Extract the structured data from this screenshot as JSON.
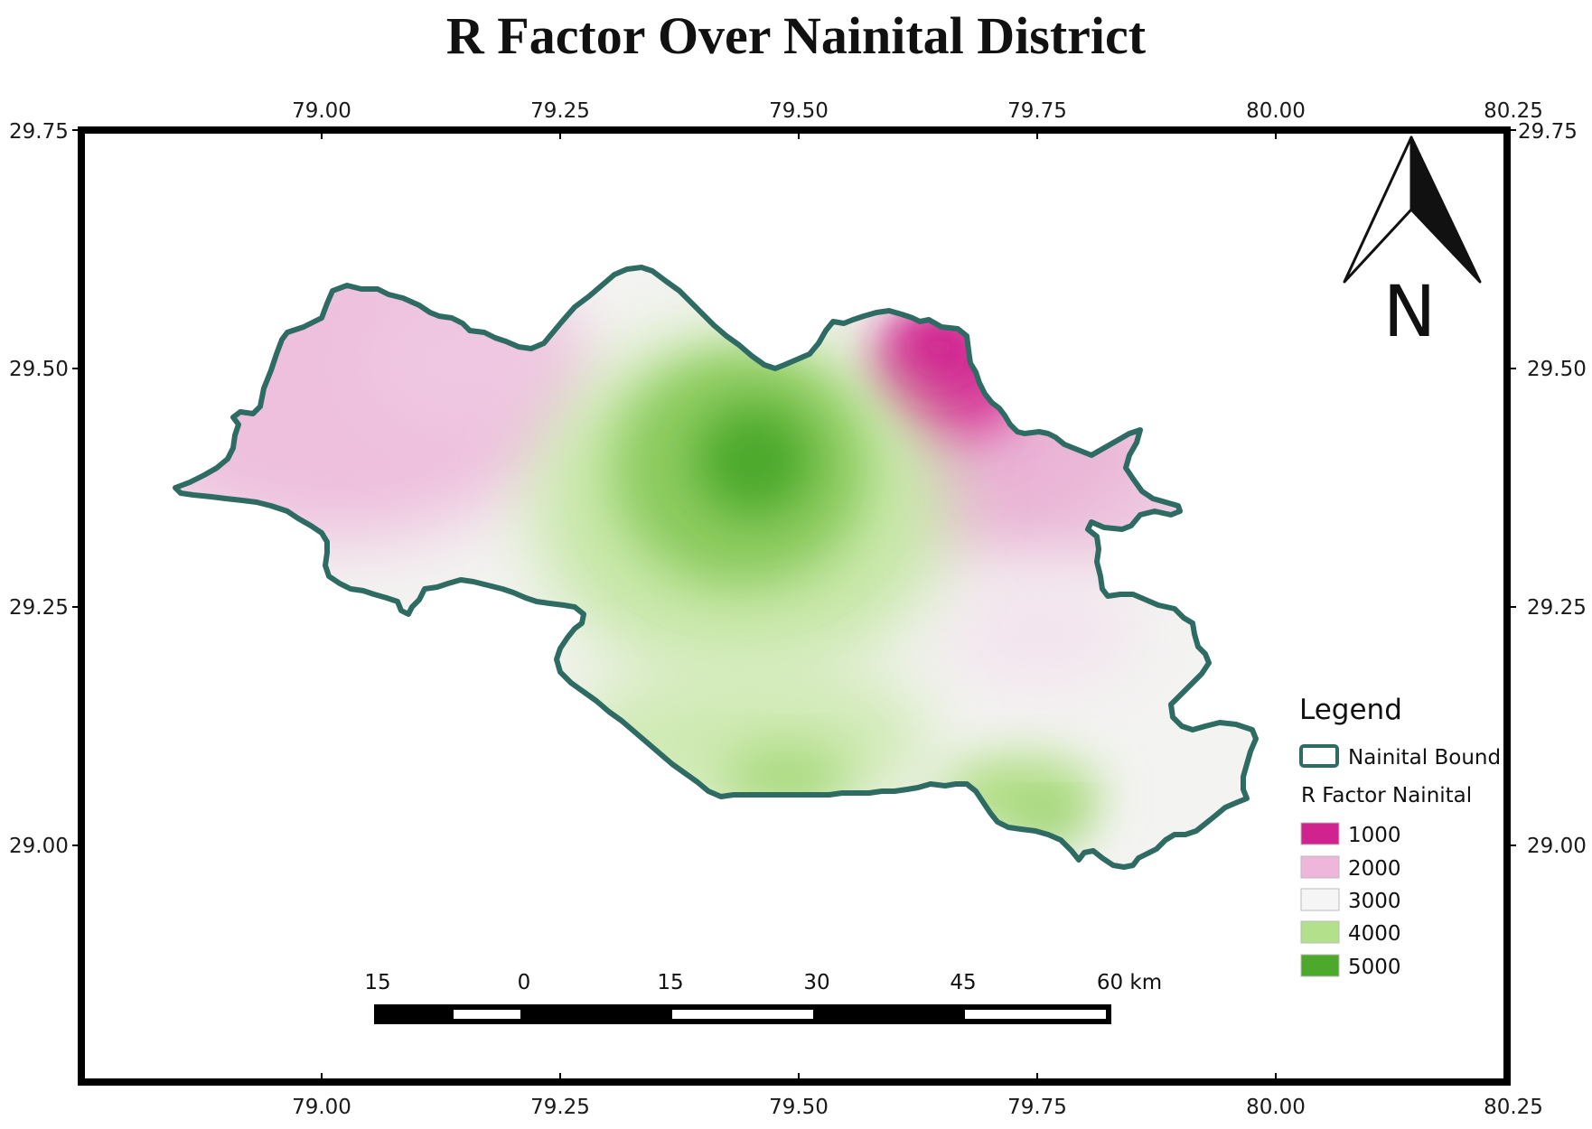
{
  "title": "R Factor Over Nainital District",
  "axes": {
    "x_ticks": [
      "79.00",
      "79.25",
      "79.50",
      "79.75",
      "80.00",
      "80.25"
    ],
    "y_ticks": [
      "29.75",
      "29.50",
      "29.25",
      "29.00"
    ]
  },
  "north_arrow": {
    "label": "N",
    "icon": "north-arrow-icon"
  },
  "legend": {
    "title": "Legend",
    "boundary_label": "Nainital Bound",
    "boundary_color": "#2e6b63",
    "raster_label": "R Factor Nainital",
    "classes": [
      {
        "value": "1000",
        "color": "#d0238f"
      },
      {
        "value": "2000",
        "color": "#efb6dc"
      },
      {
        "value": "3000",
        "color": "#f5f5f5"
      },
      {
        "value": "4000",
        "color": "#b3e08a"
      },
      {
        "value": "5000",
        "color": "#4ca92c"
      }
    ]
  },
  "scale_bar": {
    "labels": [
      "15",
      "0",
      "15",
      "30",
      "45",
      "60 km"
    ]
  }
}
